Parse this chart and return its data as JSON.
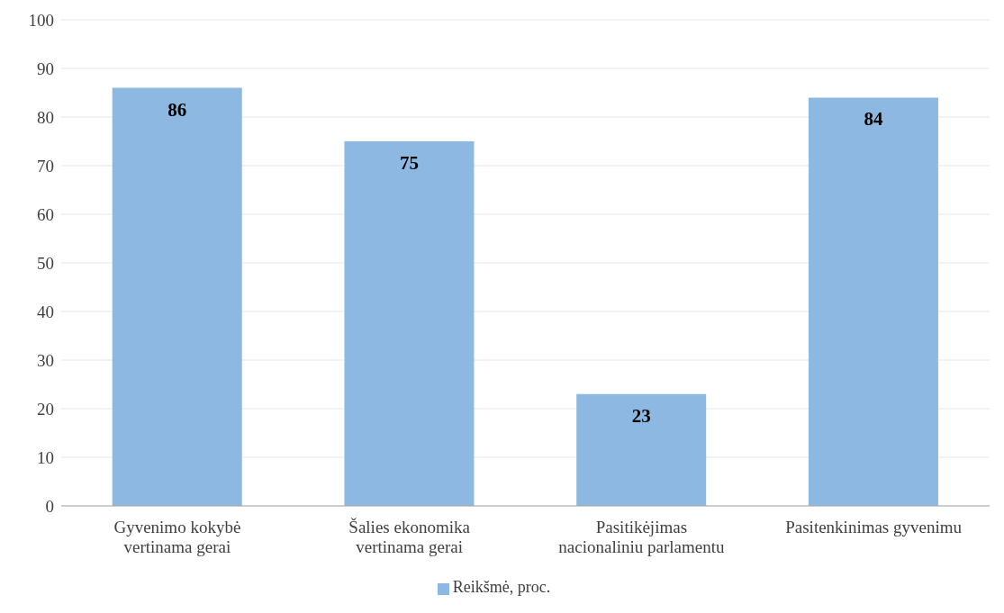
{
  "chart_data": {
    "type": "bar",
    "categories": [
      "Gyvenimo kokybė vertinama gerai",
      "Šalies ekonomika vertinama gerai",
      "Pasitikėjimas nacionaliniu parlamentu",
      "Pasitenkinimas gyvenimu"
    ],
    "series": [
      {
        "name": "Reikšmė, proc.",
        "color": "#8db8e2",
        "values": [
          86,
          75,
          23,
          84
        ]
      }
    ],
    "ylim": [
      0,
      100
    ],
    "yticks": [
      0,
      10,
      20,
      30,
      40,
      50,
      60,
      70,
      80,
      90,
      100
    ],
    "grid": "y",
    "legend": "bottom",
    "data_labels": true
  }
}
